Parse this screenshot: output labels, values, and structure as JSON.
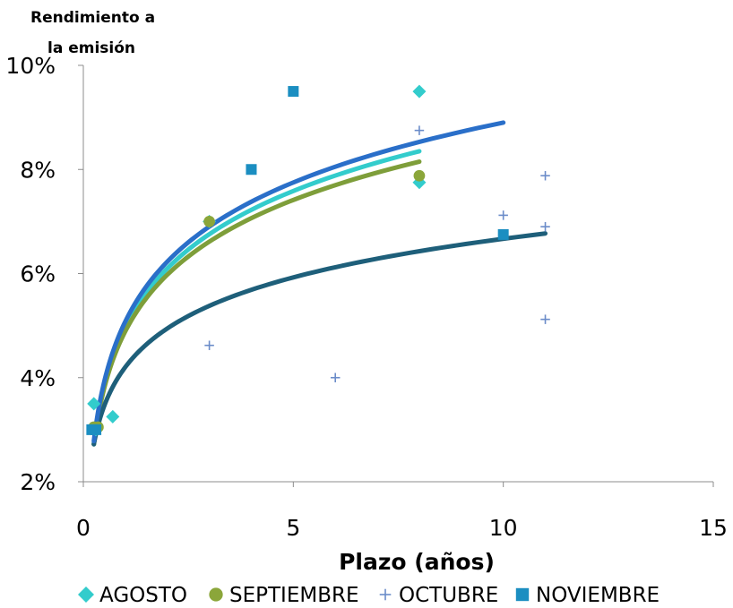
{
  "chart_data": {
    "type": "scatter",
    "ylabel_lines": [
      "Rendimiento a",
      "la emisión"
    ],
    "xlabel": "Plazo (años)",
    "xlim": [
      0,
      15
    ],
    "ylim": [
      2,
      10
    ],
    "x_ticks": [
      0,
      5,
      10,
      15
    ],
    "y_ticks": [
      2,
      4,
      6,
      8,
      10
    ],
    "x_tick_labels": [
      "0",
      "5",
      "10",
      "15"
    ],
    "y_tick_labels": [
      "2%",
      "4%",
      "6%",
      "8%",
      "10%"
    ],
    "grid": false,
    "legend_position": "bottom",
    "series": [
      {
        "name": "AGOSTO",
        "marker": "diamond",
        "color": "#33CCCC",
        "trend_color": "#33CCCC",
        "points": [
          [
            0.25,
            3.5
          ],
          [
            0.3,
            3.0
          ],
          [
            0.7,
            3.25
          ],
          [
            3.0,
            7.0
          ],
          [
            8.0,
            9.5
          ],
          [
            8.0,
            7.75
          ]
        ],
        "trend": {
          "type": "logarithmic",
          "x_range": [
            0.25,
            8.0
          ],
          "y_at_start": 2.72,
          "y_at_end": 8.35
        }
      },
      {
        "name": "SEPTIEMBRE",
        "marker": "circle",
        "color": "#8BA63A",
        "trend_color": "#7E9E3A",
        "points": [
          [
            0.25,
            3.05
          ],
          [
            0.35,
            3.05
          ],
          [
            3.0,
            7.0
          ],
          [
            8.0,
            7.88
          ]
        ],
        "trend": {
          "type": "logarithmic",
          "x_range": [
            0.25,
            8.0
          ],
          "y_at_start": 2.72,
          "y_at_end": 8.15
        }
      },
      {
        "name": "OCTUBRE",
        "marker": "plus",
        "color": "#6B8CC9",
        "trend_color": "#1E5F7A",
        "points": [
          [
            0.3,
            3.0
          ],
          [
            3.0,
            4.62
          ],
          [
            6.0,
            4.0
          ],
          [
            8.0,
            8.75
          ],
          [
            10.0,
            7.12
          ],
          [
            11.0,
            7.88
          ],
          [
            11.0,
            6.9
          ],
          [
            11.0,
            5.12
          ]
        ],
        "trend": {
          "type": "logarithmic",
          "x_range": [
            0.25,
            11.0
          ],
          "y_at_start": 2.72,
          "y_at_end": 6.77
        }
      },
      {
        "name": "NOVIEMBRE",
        "marker": "square",
        "color": "#1B8EC1",
        "trend_color": "#2A6FC9",
        "points": [
          [
            0.2,
            3.0
          ],
          [
            0.3,
            3.0
          ],
          [
            4.0,
            8.0
          ],
          [
            5.0,
            9.5
          ],
          [
            10.0,
            6.75
          ]
        ],
        "trend": {
          "type": "logarithmic",
          "x_range": [
            0.25,
            10.0
          ],
          "y_at_start": 2.78,
          "y_at_end": 8.9
        }
      }
    ]
  }
}
